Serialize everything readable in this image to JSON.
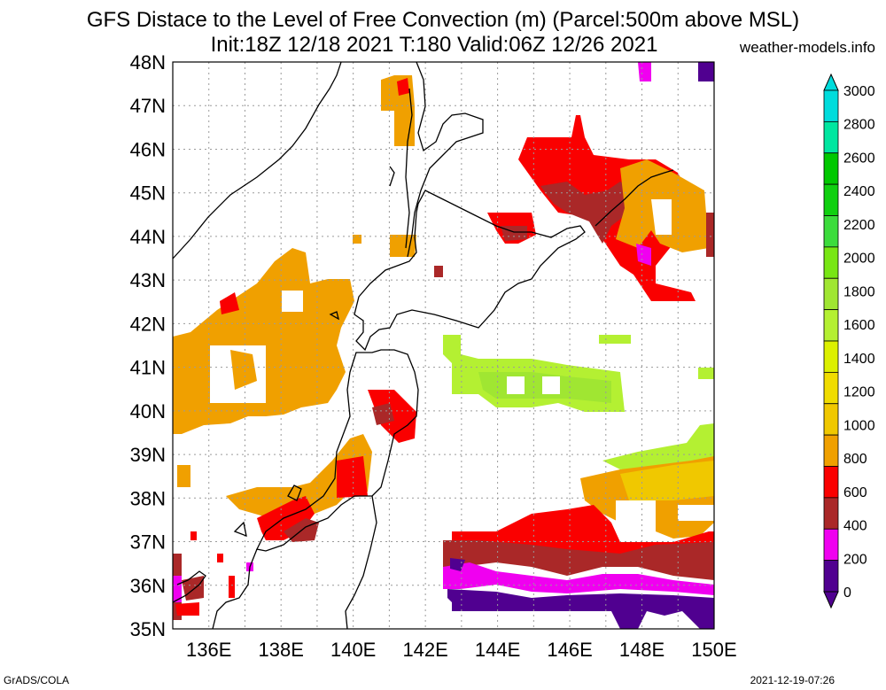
{
  "header": {
    "title_line1": "GFS Distace to the Level of Free Convection (m) (Parcel:500m above MSL)",
    "title_line2": "Init:18Z 12/18 2021 T:180 Valid:06Z 12/26 2021",
    "website": "weather-models.info"
  },
  "footer": {
    "left": "GrADS/COLA",
    "right": "2021-12-19-07:26"
  },
  "map": {
    "lat_labels": [
      "48N",
      "47N",
      "46N",
      "45N",
      "44N",
      "43N",
      "42N",
      "41N",
      "40N",
      "39N",
      "38N",
      "37N",
      "36N",
      "35N"
    ],
    "lon_labels": [
      "136E",
      "138E",
      "140E",
      "142E",
      "144E",
      "146E",
      "148E",
      "150E"
    ]
  },
  "colorbar": {
    "labels": [
      "3000",
      "2800",
      "2600",
      "2400",
      "2200",
      "2000",
      "1800",
      "1600",
      "1400",
      "1200",
      "1000",
      "800",
      "600",
      "400",
      "200",
      "0"
    ],
    "colors": [
      "#00dcdc",
      "#00e6a0",
      "#00c800",
      "#10d010",
      "#3cdc3c",
      "#78e614",
      "#a0e632",
      "#b4f032",
      "#dcf000",
      "#f0dc00",
      "#f0c800",
      "#f0a000",
      "#fa0000",
      "#aa2828",
      "#f000f0",
      "#500090"
    ]
  },
  "regions": [
    {
      "name": "western-sea-orange",
      "color": "#f0a000"
    },
    {
      "name": "east-pacific-green",
      "color": "#b4f032"
    },
    {
      "name": "south-pacific-red",
      "color": "#fa0000"
    },
    {
      "name": "south-pacific-brown",
      "color": "#aa2828"
    },
    {
      "name": "south-pacific-magenta",
      "color": "#f000f0"
    },
    {
      "name": "south-pacific-purple",
      "color": "#500090"
    },
    {
      "name": "kuril-red",
      "color": "#fa0000"
    }
  ]
}
